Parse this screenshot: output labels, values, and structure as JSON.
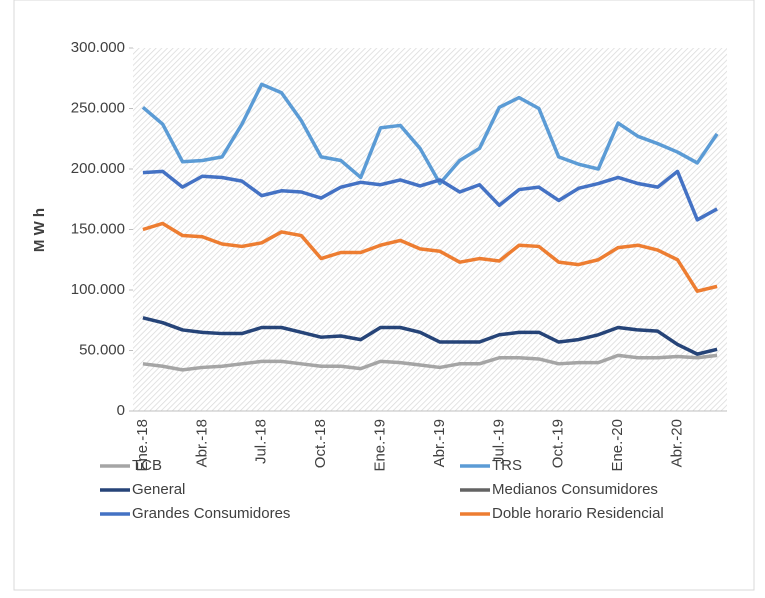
{
  "chart_data": {
    "type": "line",
    "y_label": "M W h",
    "categories": [
      "Ene.-18",
      null,
      null,
      "Abr.-18",
      null,
      null,
      "Jul.-18",
      null,
      null,
      "Oct.-18",
      null,
      null,
      "Ene.-19",
      null,
      null,
      "Abr.-19",
      null,
      null,
      "Jul.-19",
      null,
      null,
      "Oct.-19",
      null,
      null,
      "Ene.-20",
      null,
      null,
      "Abr.-20",
      null,
      null
    ],
    "series": [
      {
        "name": "TCB",
        "color": "#a5a5a5",
        "values": [
          39000,
          37000,
          34000,
          36000,
          37000,
          39000,
          41000,
          41000,
          39000,
          37000,
          37000,
          35000,
          41000,
          40000,
          38000,
          36000,
          39000,
          39000,
          44000,
          44000,
          43000,
          39000,
          40000,
          40000,
          46000,
          44000,
          44000,
          45000,
          44000,
          46000
        ]
      },
      {
        "name": "TRS",
        "color": "#5b9bd5",
        "values": [
          251000,
          237000,
          206000,
          207000,
          210000,
          237000,
          270000,
          263000,
          240000,
          210000,
          207000,
          193000,
          234000,
          236000,
          217000,
          188000,
          207000,
          217000,
          251000,
          259000,
          250000,
          210000,
          204000,
          200000,
          238000,
          227000,
          221000,
          214000,
          205000,
          229000
        ]
      },
      {
        "name": "General",
        "color": "#264478",
        "values": [
          77000,
          73000,
          67000,
          65000,
          64000,
          64000,
          69000,
          69000,
          65000,
          61000,
          62000,
          59000,
          69000,
          69000,
          65000,
          57000,
          57000,
          57000,
          63000,
          65000,
          65000,
          57000,
          59000,
          63000,
          69000,
          67000,
          66000,
          55000,
          47000,
          51000
        ]
      },
      {
        "name": "Medianos Consumidores",
        "color": "#636363",
        "values": [
          null,
          null,
          null,
          null,
          null,
          null,
          null,
          null,
          null,
          null,
          null,
          null,
          null,
          null,
          null,
          null,
          null,
          null,
          null,
          null,
          null,
          null,
          null,
          null,
          null,
          null,
          null,
          null,
          null,
          null
        ]
      },
      {
        "name": "Grandes Consumidores",
        "color": "#4472c4",
        "values": [
          197000,
          198000,
          185000,
          194000,
          193000,
          190000,
          178000,
          182000,
          181000,
          176000,
          185000,
          189000,
          187000,
          191000,
          186000,
          191000,
          181000,
          187000,
          170000,
          183000,
          185000,
          174000,
          184000,
          188000,
          193000,
          188000,
          185000,
          198000,
          158000,
          167000
        ]
      },
      {
        "name": "Doble horario Residencial",
        "color": "#ed7d31",
        "values": [
          150000,
          155000,
          145000,
          144000,
          138000,
          136000,
          139000,
          148000,
          145000,
          126000,
          131000,
          131000,
          137000,
          141000,
          134000,
          132000,
          123000,
          126000,
          124000,
          137000,
          136000,
          123000,
          121000,
          125000,
          135000,
          137000,
          133000,
          125000,
          99000,
          103000
        ]
      }
    ],
    "ylim": [
      0,
      300000
    ],
    "yticks": [
      0,
      {
        "value": 50000,
        "label": "50.000"
      },
      {
        "value": 100000,
        "label": "100.000"
      },
      {
        "value": 150000,
        "label": "150.000"
      },
      {
        "value": 200000,
        "label": "200.000"
      },
      {
        "value": 250000,
        "label": "250.000"
      },
      {
        "value": 300000,
        "label": "300.000"
      }
    ]
  }
}
